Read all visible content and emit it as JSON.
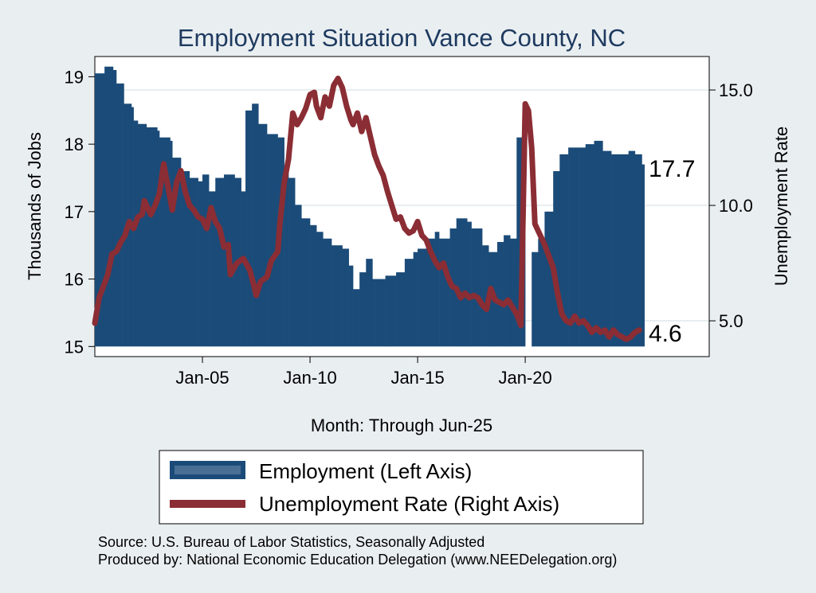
{
  "chart_data": {
    "type": "bar+line",
    "title": "Employment Situation Vance  County, NC",
    "xlabel": "Month: Through Jun-25",
    "ylabel_left": "Thousands of Jobs",
    "ylabel_right": "Unemployment Rate",
    "ylim_left": [
      14.85,
      19.3
    ],
    "ylim_right": [
      3.45,
      16.45
    ],
    "yticks_left": [
      "19",
      "18",
      "17",
      "16",
      "15"
    ],
    "yticks_left_values": [
      19,
      18,
      17,
      16,
      15
    ],
    "yticks_right": [
      "15.0",
      "10.0",
      "5.0"
    ],
    "yticks_right_values": [
      15,
      10,
      5
    ],
    "xlim": [
      2000.0,
      2028.55
    ],
    "xticks": [
      "Jan-05",
      "Jan-10",
      "Jan-15",
      "Jan-20"
    ],
    "xticks_values": [
      2005,
      2010,
      2015,
      2020
    ],
    "grid": true,
    "end_label_employment": "17.7",
    "end_label_unemployment": "4.6",
    "series": [
      {
        "name": "Employment (Left Axis)",
        "axis": "left",
        "style": "bar",
        "points": [
          [
            2000.0,
            19.05
          ],
          [
            2000.4,
            19.05
          ],
          [
            2000.45,
            19.15
          ],
          [
            2000.85,
            19.1
          ],
          [
            2001.0,
            18.9
          ],
          [
            2001.3,
            18.9
          ],
          [
            2001.35,
            18.6
          ],
          [
            2001.7,
            18.55
          ],
          [
            2001.8,
            18.35
          ],
          [
            2002.0,
            18.3
          ],
          [
            2002.4,
            18.25
          ],
          [
            2002.9,
            18.2
          ],
          [
            2003.0,
            18.1
          ],
          [
            2003.5,
            18.05
          ],
          [
            2003.6,
            17.8
          ],
          [
            2004.0,
            17.6
          ],
          [
            2004.4,
            17.5
          ],
          [
            2004.8,
            17.45
          ],
          [
            2005.0,
            17.55
          ],
          [
            2005.3,
            17.3
          ],
          [
            2005.6,
            17.5
          ],
          [
            2006.0,
            17.55
          ],
          [
            2006.5,
            17.5
          ],
          [
            2006.8,
            17.3
          ],
          [
            2007.0,
            18.5
          ],
          [
            2007.3,
            18.6
          ],
          [
            2007.6,
            18.3
          ],
          [
            2008.0,
            18.15
          ],
          [
            2008.5,
            18.1
          ],
          [
            2008.8,
            17.6
          ],
          [
            2009.0,
            17.5
          ],
          [
            2009.3,
            17.1
          ],
          [
            2009.6,
            16.9
          ],
          [
            2010.0,
            16.8
          ],
          [
            2010.3,
            16.7
          ],
          [
            2010.6,
            16.6
          ],
          [
            2011.0,
            16.5
          ],
          [
            2011.5,
            16.45
          ],
          [
            2011.8,
            16.2
          ],
          [
            2012.0,
            15.85
          ],
          [
            2012.3,
            16.1
          ],
          [
            2012.6,
            16.3
          ],
          [
            2012.9,
            16.0
          ],
          [
            2013.0,
            16.0
          ],
          [
            2013.5,
            16.05
          ],
          [
            2014.0,
            16.1
          ],
          [
            2014.4,
            16.3
          ],
          [
            2014.8,
            16.4
          ],
          [
            2015.0,
            16.45
          ],
          [
            2015.4,
            16.6
          ],
          [
            2015.8,
            16.7
          ],
          [
            2016.0,
            16.6
          ],
          [
            2016.5,
            16.75
          ],
          [
            2016.8,
            16.9
          ],
          [
            2017.3,
            16.85
          ],
          [
            2017.5,
            16.75
          ],
          [
            2018.0,
            16.5
          ],
          [
            2018.3,
            16.4
          ],
          [
            2018.7,
            16.55
          ],
          [
            2019.0,
            16.65
          ],
          [
            2019.3,
            16.6
          ],
          [
            2019.6,
            18.1
          ],
          [
            2019.9,
            17.95
          ],
          [
            2020.0,
            15.0
          ],
          [
            2020.3,
            16.4
          ],
          [
            2020.6,
            16.6
          ],
          [
            2020.9,
            17.0
          ],
          [
            2021.3,
            17.6
          ],
          [
            2021.6,
            17.85
          ],
          [
            2022.0,
            17.95
          ],
          [
            2022.5,
            17.95
          ],
          [
            2022.8,
            18.0
          ],
          [
            2023.2,
            18.05
          ],
          [
            2023.6,
            17.9
          ],
          [
            2024.0,
            17.85
          ],
          [
            2024.4,
            17.85
          ],
          [
            2024.8,
            17.9
          ],
          [
            2025.1,
            17.85
          ],
          [
            2025.42,
            17.7
          ]
        ]
      },
      {
        "name": "Unemployment Rate (Right Axis)",
        "axis": "right",
        "style": "line",
        "points": [
          [
            2000.0,
            4.9
          ],
          [
            2000.2,
            6.0
          ],
          [
            2000.4,
            6.5
          ],
          [
            2000.6,
            7.0
          ],
          [
            2000.8,
            7.9
          ],
          [
            2001.0,
            8.0
          ],
          [
            2001.2,
            8.4
          ],
          [
            2001.4,
            8.7
          ],
          [
            2001.6,
            9.3
          ],
          [
            2001.8,
            9.0
          ],
          [
            2002.0,
            9.5
          ],
          [
            2002.2,
            9.6
          ],
          [
            2002.3,
            10.2
          ],
          [
            2002.6,
            9.6
          ],
          [
            2002.8,
            10.0
          ],
          [
            2003.0,
            10.5
          ],
          [
            2003.2,
            11.8
          ],
          [
            2003.4,
            10.8
          ],
          [
            2003.6,
            9.8
          ],
          [
            2003.8,
            11.0
          ],
          [
            2004.0,
            11.5
          ],
          [
            2004.2,
            10.6
          ],
          [
            2004.4,
            10.0
          ],
          [
            2004.6,
            9.8
          ],
          [
            2004.8,
            9.5
          ],
          [
            2005.0,
            9.4
          ],
          [
            2005.2,
            9.0
          ],
          [
            2005.4,
            9.9
          ],
          [
            2005.6,
            9.3
          ],
          [
            2005.8,
            9.0
          ],
          [
            2006.0,
            8.2
          ],
          [
            2006.2,
            8.3
          ],
          [
            2006.3,
            7.0
          ],
          [
            2006.6,
            7.5
          ],
          [
            2006.9,
            7.7
          ],
          [
            2007.2,
            7.2
          ],
          [
            2007.4,
            6.5
          ],
          [
            2007.5,
            6.1
          ],
          [
            2007.7,
            6.7
          ],
          [
            2008.0,
            6.9
          ],
          [
            2008.2,
            7.6
          ],
          [
            2008.5,
            8.0
          ],
          [
            2008.6,
            9.2
          ],
          [
            2008.8,
            11.0
          ],
          [
            2009.0,
            12.0
          ],
          [
            2009.2,
            14.0
          ],
          [
            2009.4,
            13.5
          ],
          [
            2009.6,
            13.8
          ],
          [
            2009.8,
            14.2
          ],
          [
            2010.0,
            14.8
          ],
          [
            2010.2,
            14.9
          ],
          [
            2010.3,
            14.3
          ],
          [
            2010.5,
            13.8
          ],
          [
            2010.7,
            14.7
          ],
          [
            2010.9,
            14.3
          ],
          [
            2011.1,
            15.2
          ],
          [
            2011.3,
            15.5
          ],
          [
            2011.5,
            15.1
          ],
          [
            2011.7,
            14.3
          ],
          [
            2011.9,
            13.7
          ],
          [
            2012.0,
            13.5
          ],
          [
            2012.2,
            14.0
          ],
          [
            2012.4,
            13.2
          ],
          [
            2012.6,
            13.8
          ],
          [
            2012.8,
            13.0
          ],
          [
            2013.0,
            12.2
          ],
          [
            2013.2,
            11.7
          ],
          [
            2013.4,
            11.3
          ],
          [
            2013.6,
            10.6
          ],
          [
            2013.8,
            10.0
          ],
          [
            2014.0,
            9.4
          ],
          [
            2014.2,
            9.5
          ],
          [
            2014.4,
            9.0
          ],
          [
            2014.6,
            8.8
          ],
          [
            2014.8,
            8.9
          ],
          [
            2015.0,
            9.3
          ],
          [
            2015.2,
            8.7
          ],
          [
            2015.4,
            8.5
          ],
          [
            2015.6,
            8.0
          ],
          [
            2015.8,
            7.6
          ],
          [
            2016.0,
            7.3
          ],
          [
            2016.2,
            7.5
          ],
          [
            2016.4,
            6.9
          ],
          [
            2016.6,
            6.5
          ],
          [
            2016.8,
            6.4
          ],
          [
            2017.0,
            6.0
          ],
          [
            2017.2,
            6.2
          ],
          [
            2017.4,
            6.0
          ],
          [
            2017.6,
            6.1
          ],
          [
            2017.8,
            6.0
          ],
          [
            2018.0,
            5.7
          ],
          [
            2018.2,
            5.5
          ],
          [
            2018.4,
            6.4
          ],
          [
            2018.6,
            5.9
          ],
          [
            2018.8,
            5.8
          ],
          [
            2019.0,
            5.7
          ],
          [
            2019.2,
            5.9
          ],
          [
            2019.4,
            5.6
          ],
          [
            2019.6,
            5.3
          ],
          [
            2019.8,
            4.8
          ],
          [
            2020.0,
            14.4
          ],
          [
            2020.15,
            14.1
          ],
          [
            2020.3,
            12.5
          ],
          [
            2020.45,
            9.2
          ],
          [
            2020.6,
            8.9
          ],
          [
            2020.75,
            8.6
          ],
          [
            2020.9,
            8.3
          ],
          [
            2021.1,
            7.8
          ],
          [
            2021.3,
            7.3
          ],
          [
            2021.5,
            6.2
          ],
          [
            2021.7,
            5.3
          ],
          [
            2021.9,
            5.0
          ],
          [
            2022.1,
            4.9
          ],
          [
            2022.3,
            5.2
          ],
          [
            2022.5,
            4.9
          ],
          [
            2022.7,
            5.0
          ],
          [
            2022.9,
            4.8
          ],
          [
            2023.1,
            4.5
          ],
          [
            2023.3,
            4.7
          ],
          [
            2023.5,
            4.5
          ],
          [
            2023.7,
            4.6
          ],
          [
            2023.9,
            4.3
          ],
          [
            2024.1,
            4.6
          ],
          [
            2024.3,
            4.4
          ],
          [
            2024.5,
            4.3
          ],
          [
            2024.7,
            4.2
          ],
          [
            2024.9,
            4.3
          ],
          [
            2025.1,
            4.5
          ],
          [
            2025.3,
            4.6
          ]
        ]
      }
    ]
  },
  "legend": {
    "employment_label": "Employment (Left Axis)",
    "unemployment_label": "Unemployment Rate (Right Axis)"
  },
  "footer": {
    "source": "Source: U.S. Bureau of Labor Statistics, Seasonally Adjusted",
    "produced_by": "Produced by: National Economic Education Delegation (www.NEEDelegation.org)"
  },
  "colors": {
    "background": "#e9eef1",
    "plot_background": "#ffffff",
    "employment_fill": "#1b4b78",
    "unemployment_line": "#8b2d34",
    "title": "#1e3a5f",
    "legend_employment_inner": "#4a6f94"
  }
}
